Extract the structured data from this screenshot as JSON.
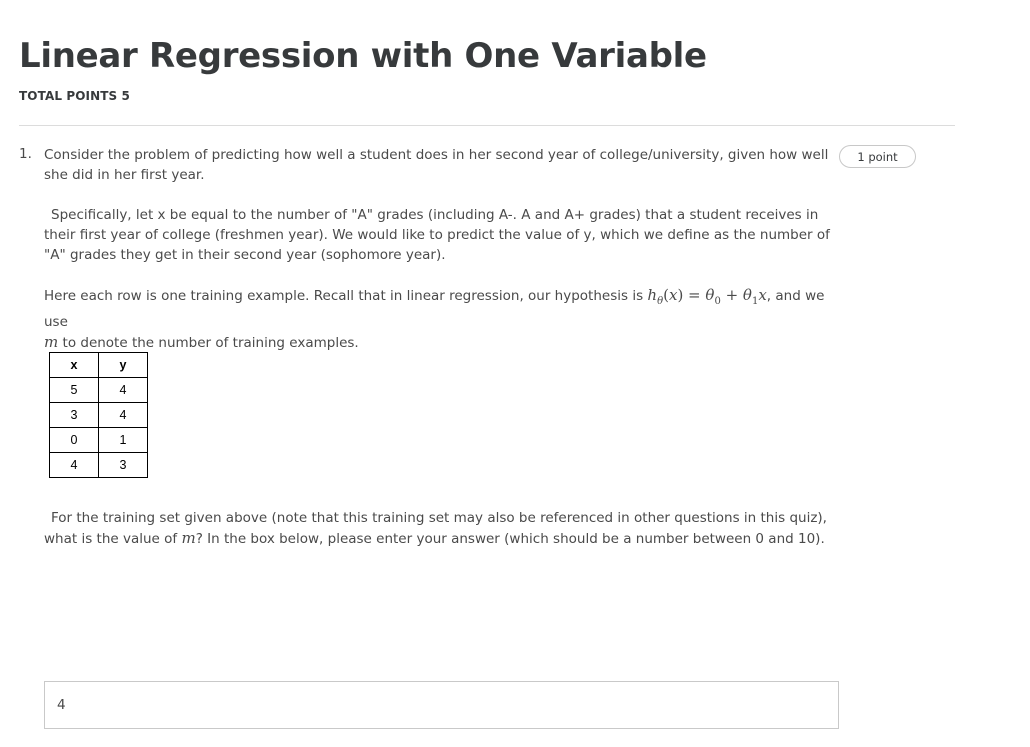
{
  "quiz": {
    "title": "Linear Regression with One Variable",
    "total_points": "TOTAL POINTS 5"
  },
  "question": {
    "number": "1.",
    "points": "1 point",
    "intro": "Consider the problem of predicting how well a student does in her second year of college/university, given how well she did in her first year.",
    "specifics": "Specifically, let x be equal to the number of \"A\" grades (including A-. A and A+ grades) that a student receives in their first year of college (freshmen year).  We would like to predict the value of y, which we define as the number of \"A\" grades they get in their second year (sophomore year).",
    "hypothesis_before": "Here each row is one training example. Recall that in linear regression, our hypothesis is ",
    "hypothesis_after": ", and we use",
    "m_sentence": " to denote the number of training examples.",
    "prompt_before": "For the training set given above (note that this training set may also be referenced in other questions in this quiz), what is the value of ",
    "prompt_after": "?  In the box below, please enter your answer (which should be a number between 0 and 10).",
    "answer_value": "4"
  },
  "training_set": {
    "headers": [
      "x",
      "y"
    ],
    "rows": [
      [
        "5",
        "4"
      ],
      [
        "3",
        "4"
      ],
      [
        "0",
        "1"
      ],
      [
        "4",
        "3"
      ]
    ]
  }
}
